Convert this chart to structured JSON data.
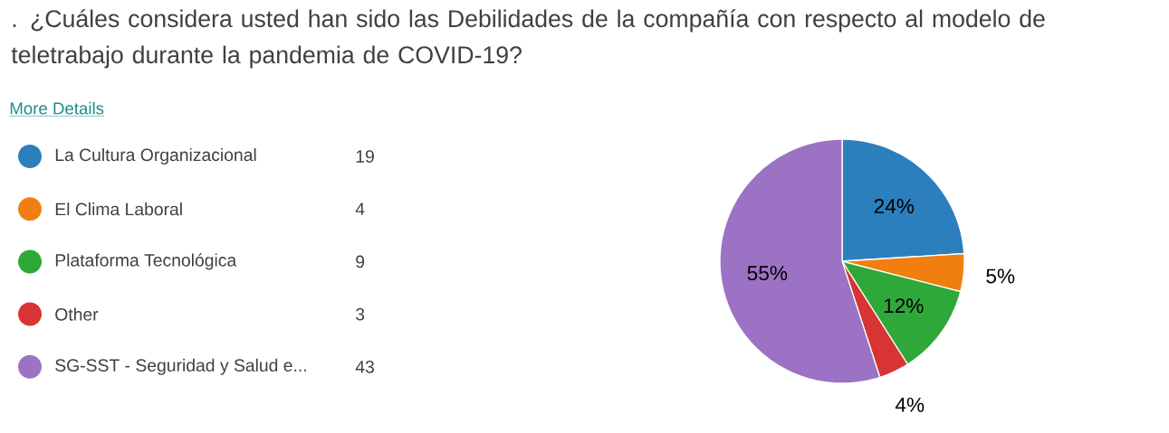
{
  "chart_data": {
    "type": "pie",
    "title": ". ¿Cuáles considera usted han sido las Debilidades de la compañía con respecto al modelo de teletrabajo durante la pandemia de COVID-19?",
    "annotations": [
      "More Details",
      "19",
      "4",
      "9",
      "3",
      "43"
    ],
    "categories": [
      "La Cultura Organizacional",
      "El Clima Laboral",
      "Plataforma Tecnológica",
      "Other",
      "SG-SST - Seguridad y Salud e..."
    ],
    "values": [
      24,
      5,
      12,
      4,
      55
    ],
    "colors": [
      "#2b7fbc",
      "#f07f10",
      "#2fa83a",
      "#d83434",
      "#9c72c4"
    ],
    "value_labels": [
      "24%",
      "5%",
      "12%",
      "4%",
      "55%"
    ],
    "legend": "left"
  }
}
